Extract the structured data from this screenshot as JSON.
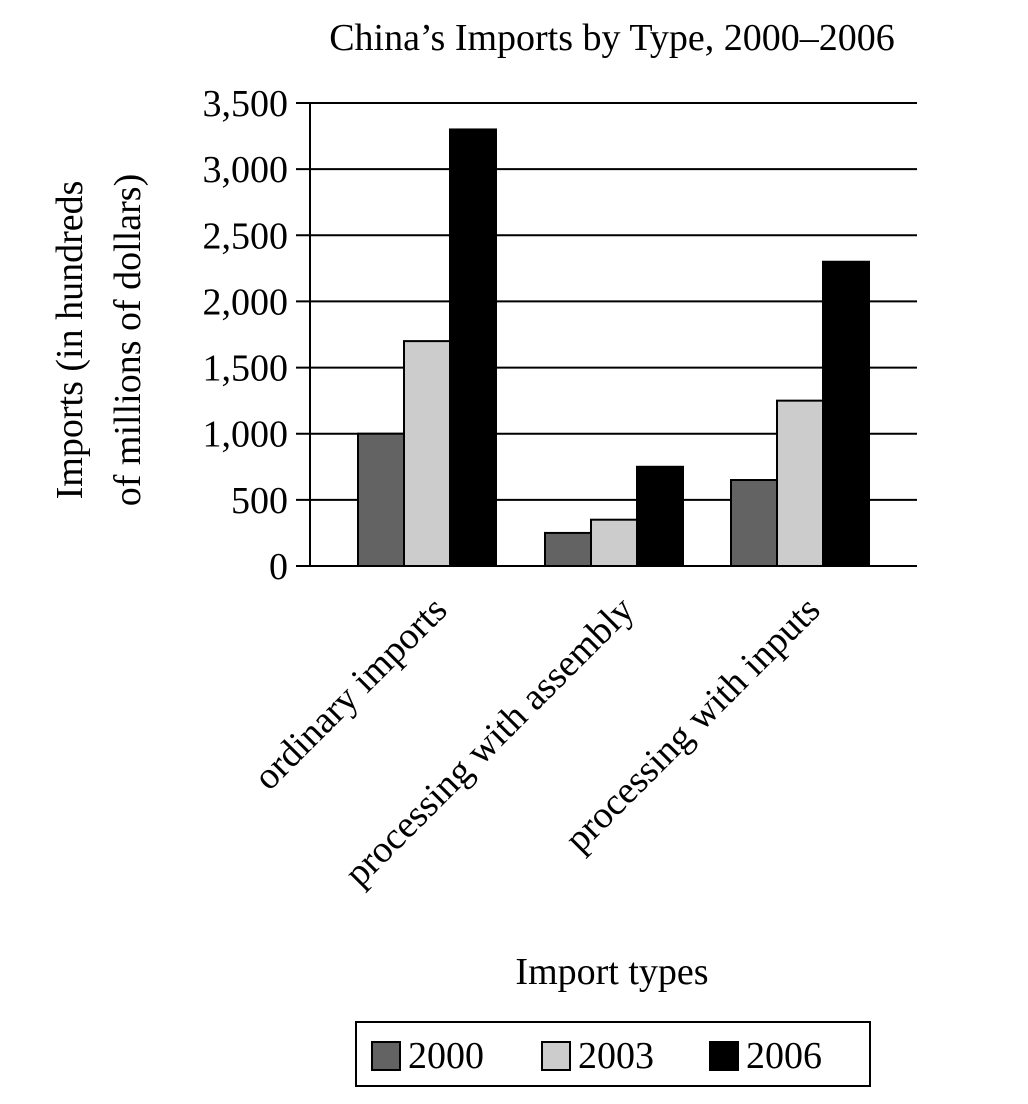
{
  "chart_data": {
    "type": "bar",
    "title": "China’s Imports by Type, 2000–2006",
    "xlabel": "Import types",
    "ylabel": [
      "Imports (in hundreds",
      "of millions of dollars)"
    ],
    "categories": [
      "ordinary imports",
      "processing with assembly",
      "processing with inputs"
    ],
    "series": [
      {
        "name": "2000",
        "color": "#636363",
        "values": [
          1000,
          250,
          650
        ]
      },
      {
        "name": "2003",
        "color": "#cccccc",
        "values": [
          1700,
          350,
          1250
        ]
      },
      {
        "name": "2006",
        "color": "#000000",
        "values": [
          3300,
          750,
          2300
        ]
      }
    ],
    "ylim": [
      0,
      3500
    ],
    "yticks": [
      0,
      500,
      1000,
      1500,
      2000,
      2500,
      3000,
      3500
    ],
    "ytick_labels": [
      "0",
      "500",
      "1,000",
      "1,500",
      "2,000",
      "2,500",
      "3,000",
      "3,500"
    ],
    "grid": true,
    "legend_position": "bottom"
  }
}
